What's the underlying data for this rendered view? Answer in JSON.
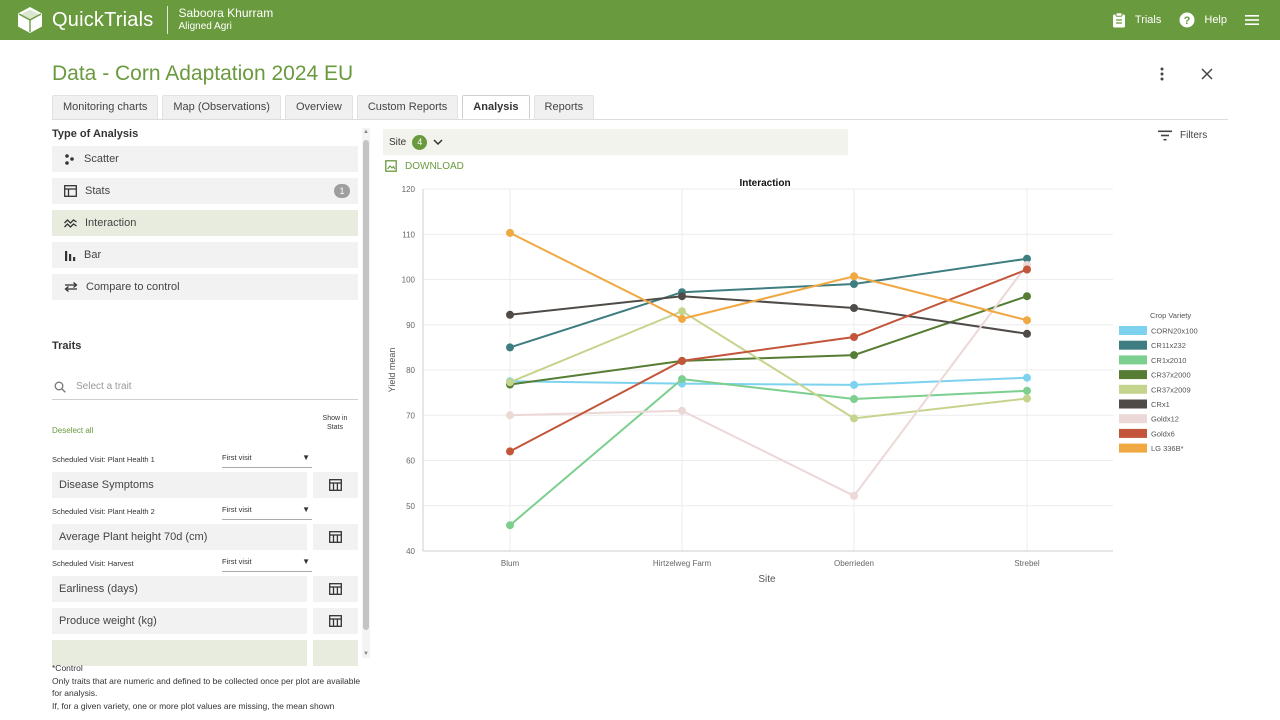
{
  "app": {
    "brand": "QuickTrials",
    "user_name": "Saboora Khurram",
    "user_org": "Aligned Agri",
    "nav": [
      {
        "label": "Trials",
        "icon": "clipboard-icon"
      },
      {
        "label": "Help",
        "icon": "help-icon"
      }
    ],
    "menu_icon": "hamburger-menu-icon",
    "colors": {
      "brand": "#6a9a3e",
      "selected_bg": "#e8ecde"
    }
  },
  "page": {
    "title": "Data - Corn Adaptation 2024 EU"
  },
  "tabs": [
    {
      "label": "Monitoring charts",
      "active": false
    },
    {
      "label": "Map (Observations)",
      "active": false
    },
    {
      "label": "Overview",
      "active": false
    },
    {
      "label": "Custom Reports",
      "active": false
    },
    {
      "label": "Analysis",
      "active": true
    },
    {
      "label": "Reports",
      "active": false
    }
  ],
  "left": {
    "analysis_title": "Type of Analysis",
    "analysis_types": [
      {
        "label": "Scatter",
        "icon": "scatter-icon",
        "selected": false,
        "badge": ""
      },
      {
        "label": "Stats",
        "icon": "table-icon",
        "selected": false,
        "badge": "1"
      },
      {
        "label": "Interaction",
        "icon": "interaction-icon",
        "selected": true,
        "badge": ""
      },
      {
        "label": "Bar",
        "icon": "bar-chart-icon",
        "selected": false,
        "badge": ""
      },
      {
        "label": "Compare to control",
        "icon": "compare-icon",
        "selected": false,
        "badge": ""
      }
    ],
    "traits_title": "Traits",
    "search_placeholder": "Select a trait",
    "deselect_all": "Deselect all",
    "show_in_stats": "Show in Stats",
    "groups": [
      {
        "visit": "Scheduled Visit: Plant Health 1",
        "select": "First visit",
        "traits": [
          "Disease Symptoms"
        ]
      },
      {
        "visit": "Scheduled Visit: Plant Health 2",
        "select": "First visit",
        "traits": [
          "Average Plant height 70d (cm)"
        ]
      },
      {
        "visit": "Scheduled Visit: Harvest",
        "select": "First visit",
        "traits": [
          "Earliness (days)",
          "Produce weight (kg)"
        ]
      }
    ],
    "footnote": {
      "control": "*Control",
      "line1": "Only traits that are numeric and defined to be collected once per plot are available for analysis.",
      "line2": "If, for a given variety, one or more plot values are missing, the mean shown"
    }
  },
  "right": {
    "site_label": "Site",
    "site_count": "4",
    "filters_label": "Filters",
    "download_label": "DOWNLOAD"
  },
  "chart_data": {
    "type": "line",
    "title": "Interaction",
    "xlabel": "Site",
    "ylabel": "Yield mean",
    "categories": [
      "Blum",
      "Hirtzelweg Farm",
      "Oberrieden",
      "Strebel"
    ],
    "ylim": [
      40,
      120
    ],
    "yticks": [
      40,
      50,
      60,
      70,
      80,
      90,
      100,
      110,
      120
    ],
    "grid": true,
    "legend_title": "Crop Variety",
    "legend_position": "right",
    "series": [
      {
        "name": "CORN20x100",
        "color": "#7dd3ef",
        "values": [
          77.5,
          77,
          76.7,
          78.3
        ]
      },
      {
        "name": "CR11x232",
        "color": "#3e7d80",
        "values": [
          85,
          97.2,
          99,
          104.6
        ]
      },
      {
        "name": "CR1x2010",
        "color": "#7ccf8e",
        "values": [
          45.7,
          78,
          73.6,
          75.4
        ]
      },
      {
        "name": "CR37x2000",
        "color": "#567d33",
        "values": [
          76.8,
          82,
          83.3,
          96.3
        ]
      },
      {
        "name": "CR37x2009",
        "color": "#c5d48d",
        "values": [
          77.3,
          93,
          69.3,
          73.7
        ]
      },
      {
        "name": "CRx1",
        "color": "#4f4b48",
        "values": [
          92.2,
          96.3,
          93.7,
          88
        ]
      },
      {
        "name": "Goldx12",
        "color": "#ecd8d6",
        "values": [
          70,
          71,
          52.2,
          103.2
        ]
      },
      {
        "name": "Goldx6",
        "color": "#c2553a",
        "values": [
          62,
          82,
          87.3,
          102.2
        ]
      },
      {
        "name": "LG 336B*",
        "color": "#f0a842",
        "values": [
          110.3,
          91.3,
          100.7,
          91
        ]
      }
    ]
  }
}
